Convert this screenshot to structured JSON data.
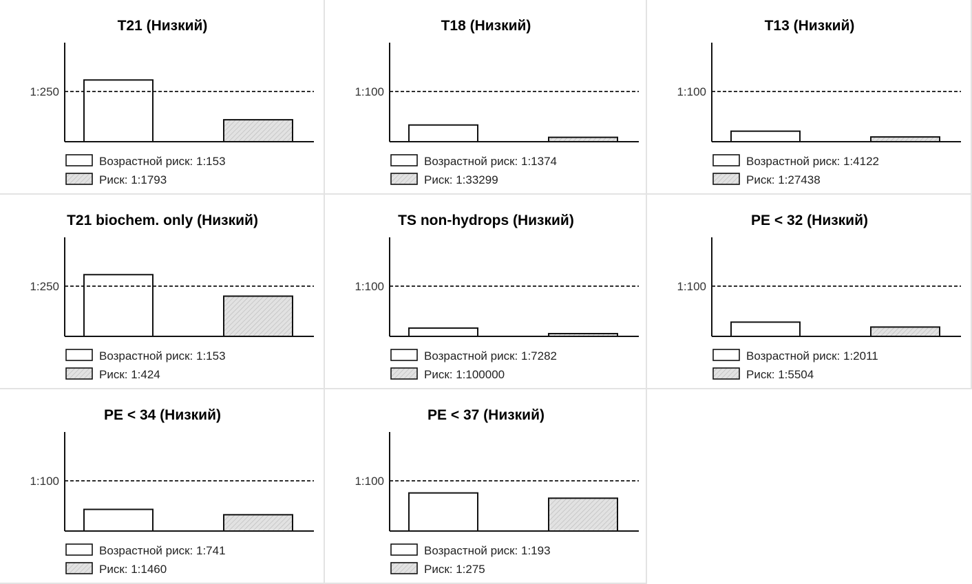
{
  "colors": {
    "bar_outline": "#111111",
    "risk_fill": "#e2e2e2",
    "hatch": "#bdbdbd",
    "panel_border": "#e3e3e3"
  },
  "chart_data": [
    {
      "type": "bar",
      "title": "T21 (Низкий)",
      "scale": "reciprocal-risk",
      "threshold_label": "1:250",
      "threshold": 250,
      "categories": [
        "Возрастной риск",
        "Риск"
      ],
      "values": [
        153,
        1793
      ],
      "legend": [
        "Возрастной риск: 1:153",
        "Риск: 1:1793"
      ]
    },
    {
      "type": "bar",
      "title": "T18 (Низкий)",
      "scale": "reciprocal-risk",
      "threshold_label": "1:100",
      "threshold": 100,
      "categories": [
        "Возрастной риск",
        "Риск"
      ],
      "values": [
        1374,
        33299
      ],
      "legend": [
        "Возрастной риск: 1:1374",
        "Риск: 1:33299"
      ]
    },
    {
      "type": "bar",
      "title": "T13 (Низкий)",
      "scale": "reciprocal-risk",
      "threshold_label": "1:100",
      "threshold": 100,
      "categories": [
        "Возрастной риск",
        "Риск"
      ],
      "values": [
        4122,
        27438
      ],
      "legend": [
        "Возрастной риск: 1:4122",
        "Риск: 1:27438"
      ]
    },
    {
      "type": "bar",
      "title": "T21 biochem. only (Низкий)",
      "scale": "reciprocal-risk",
      "threshold_label": "1:250",
      "threshold": 250,
      "categories": [
        "Возрастной риск",
        "Риск"
      ],
      "values": [
        153,
        424
      ],
      "legend": [
        "Возрастной риск: 1:153",
        "Риск: 1:424"
      ]
    },
    {
      "type": "bar",
      "title": "TS non-hydrops (Низкий)",
      "scale": "reciprocal-risk",
      "threshold_label": "1:100",
      "threshold": 100,
      "categories": [
        "Возрастной риск",
        "Риск"
      ],
      "values": [
        7282,
        100000
      ],
      "legend": [
        "Возрастной риск: 1:7282",
        "Риск: 1:100000"
      ]
    },
    {
      "type": "bar",
      "title": "PE < 32 (Низкий)",
      "scale": "reciprocal-risk",
      "threshold_label": "1:100",
      "threshold": 100,
      "categories": [
        "Возрастной риск",
        "Риск"
      ],
      "values": [
        2011,
        5504
      ],
      "legend": [
        "Возрастной риск: 1:2011",
        "Риск: 1:5504"
      ]
    },
    {
      "type": "bar",
      "title": "PE < 34 (Низкий)",
      "scale": "reciprocal-risk",
      "threshold_label": "1:100",
      "threshold": 100,
      "categories": [
        "Возрастной риск",
        "Риск"
      ],
      "values": [
        741,
        1460
      ],
      "legend": [
        "Возрастной риск: 1:741",
        "Риск: 1:1460"
      ]
    },
    {
      "type": "bar",
      "title": "PE < 37 (Низкий)",
      "scale": "reciprocal-risk",
      "threshold_label": "1:100",
      "threshold": 100,
      "categories": [
        "Возрастной риск",
        "Риск"
      ],
      "values": [
        193,
        275
      ],
      "legend": [
        "Возрастной риск: 1:193",
        "Риск: 1:275"
      ]
    }
  ]
}
